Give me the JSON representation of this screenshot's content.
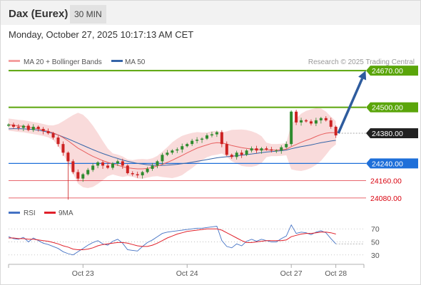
{
  "header": {
    "instrument": "Dax (Eurex)",
    "timeframe": "30 MIN"
  },
  "datetime": "Monday, October 27, 2025 10:17:13 AM CET",
  "legend": {
    "ma20_label": "MA 20 + Bollinger Bands",
    "ma50_label": "MA 50",
    "rsi_label": "RSI",
    "ma9_label": "9MA"
  },
  "credit": "Research © 2025 Trading Central",
  "colors": {
    "green": "#5aa50a",
    "blue": "#1e6fd9",
    "red": "#d9000d",
    "dark": "#222222",
    "candle_up": "#2e8b2e",
    "candle_down": "#cc2222",
    "ma20": "#e86060",
    "ma50": "#3565a8",
    "bollinger": "#f8d5d5",
    "rsi": "#4472c4",
    "rsi_ma": "#e0202a",
    "arrow": "#2e5c9e"
  },
  "chart_data": {
    "type": "candlestick",
    "y_range": [
      24040,
      24720
    ],
    "levels": [
      {
        "value": 24670.0,
        "label": "24670.00",
        "style": "green"
      },
      {
        "value": 24500.0,
        "label": "24500.00",
        "style": "green"
      },
      {
        "value": 24380.0,
        "label": "24380.00",
        "style": "dark"
      },
      {
        "value": 24240.0,
        "label": "24240.00",
        "style": "blue"
      },
      {
        "value": 24160.0,
        "label": "24160.00",
        "style": "red"
      },
      {
        "value": 24080.0,
        "label": "24080.00",
        "style": "red"
      }
    ],
    "x_ticks": [
      {
        "index": 15,
        "label": "Oct 23"
      },
      {
        "index": 36,
        "label": "Oct 24"
      },
      {
        "index": 57,
        "label": "Oct 27"
      },
      {
        "index": 66,
        "label": "Oct 28"
      }
    ],
    "projection": {
      "from_index": 66.5,
      "from_value": 24380,
      "to_index": 72,
      "to_value": 24670
    },
    "closes": [
      24420,
      24410,
      24405,
      24415,
      24395,
      24410,
      24400,
      24390,
      24380,
      24360,
      24330,
      24290,
      24250,
      24200,
      24170,
      24190,
      24210,
      24230,
      24245,
      24230,
      24220,
      24240,
      24250,
      24230,
      24195,
      24190,
      24185,
      24200,
      24215,
      24230,
      24250,
      24280,
      24290,
      24300,
      24305,
      24320,
      24330,
      24345,
      24350,
      24355,
      24370,
      24375,
      24385,
      24330,
      24280,
      24270,
      24290,
      24280,
      24300,
      24310,
      24300,
      24310,
      24305,
      24300,
      24300,
      24315,
      24330,
      24480,
      24430,
      24440,
      24435,
      24425,
      24440,
      24450,
      24440,
      24410,
      24370
    ],
    "ma20": [
      24420,
      24417,
      24414,
      24412,
      24408,
      24404,
      24400,
      24395,
      24389,
      24382,
      24372,
      24360,
      24345,
      24328,
      24311,
      24298,
      24285,
      24273,
      24263,
      24253,
      24245,
      24238,
      24232,
      24225,
      24220,
      24217,
      24215,
      24215,
      24217,
      24222,
      24228,
      24236,
      24245,
      24255,
      24266,
      24277,
      24289,
      24300,
      24311,
      24319,
      24326,
      24333,
      24336,
      24335,
      24330,
      24323,
      24318,
      24313,
      24310,
      24307,
      24305,
      24304,
      24303,
      24302,
      24302,
      24303,
      24306,
      24318,
      24328,
      24338,
      24347,
      24355,
      24365,
      24374,
      24380,
      24383,
      24382
    ],
    "ma50": [
      24400,
      24401,
      24401,
      24400,
      24399,
      24397,
      24394,
      24390,
      24385,
      24379,
      24372,
      24363,
      24354,
      24344,
      24334,
      24324,
      24314,
      24304,
      24295,
      24286,
      24278,
      24270,
      24263,
      24256,
      24250,
      24245,
      24240,
      24237,
      24234,
      24232,
      24231,
      24231,
      24232,
      24234,
      24236,
      24239,
      24242,
      24246,
      24250,
      24254,
      24258,
      24262,
      24266,
      24269,
      24271,
      24273,
      24276,
      24278,
      24281,
      24284,
      24287,
      24290,
      24293,
      24295,
      24297,
      24299,
      24302,
      24308,
      24313,
      24318,
      24322,
      24326,
      24331,
      24336,
      24340,
      24344,
      24347
    ],
    "rsi": {
      "y_ticks": [
        70,
        50,
        30
      ],
      "y_range": [
        20,
        80
      ],
      "rsi": [
        58,
        55,
        54,
        57,
        50,
        56,
        52,
        48,
        46,
        43,
        40,
        35,
        32,
        30,
        35,
        40,
        45,
        49,
        52,
        47,
        45,
        51,
        54,
        48,
        38,
        37,
        36,
        43,
        49,
        53,
        58,
        63,
        65,
        66,
        67,
        68,
        69,
        70,
        71,
        71,
        72,
        73,
        74,
        52,
        43,
        41,
        47,
        44,
        51,
        54,
        51,
        54,
        52,
        50,
        50,
        55,
        59,
        76,
        63,
        65,
        64,
        61,
        65,
        67,
        64,
        55,
        47
      ],
      "rsi_ma": [
        56,
        56,
        55,
        55,
        54,
        54,
        53,
        52,
        51,
        49,
        47,
        44,
        42,
        39,
        38,
        38,
        39,
        41,
        44,
        46,
        47,
        48,
        49,
        49,
        48,
        46,
        44,
        43,
        43,
        45,
        48,
        52,
        56,
        59,
        62,
        64,
        66,
        67,
        68,
        69,
        70,
        70,
        70,
        68,
        64,
        60,
        56,
        52,
        49,
        49,
        50,
        51,
        52,
        52,
        52,
        52,
        53,
        58,
        60,
        62,
        63,
        63,
        64,
        65,
        65,
        64,
        62
      ]
    }
  }
}
